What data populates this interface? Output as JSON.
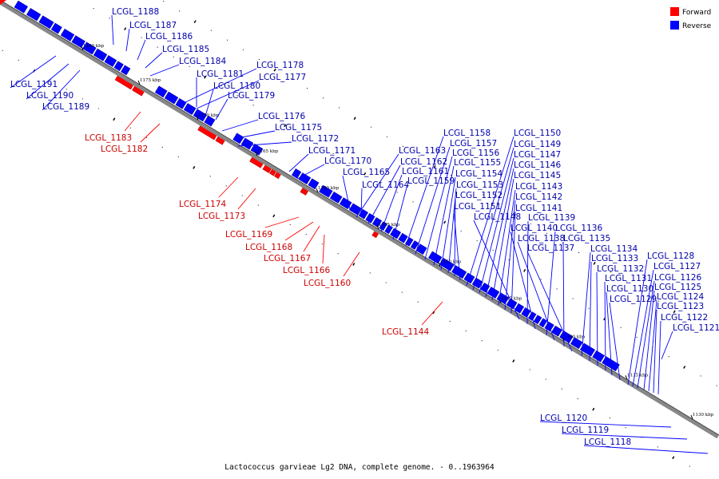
{
  "caption": "Lactococcus garvieae Lg2 DNA, complete genome. - 0..1963964",
  "legend": [
    {
      "label": "Forward",
      "color": "#ff0000"
    },
    {
      "label": "Reverse",
      "color": "#0000ff"
    }
  ],
  "colors": {
    "forward": "#ff0000",
    "reverse": "#0000ff",
    "forward_label": "#cc0000",
    "reverse_label": "#0000aa",
    "backbone": "#888888"
  },
  "kbp_ticks": [
    "1180 kbp",
    "1175 kbp",
    "1170 kbp",
    "1165 kbp",
    "1160 kbp",
    "1155 kbp",
    "1150 kbp",
    "1145 kbp",
    "1140 kbp",
    "1135 kbp",
    "1130 kbp"
  ],
  "genes": {
    "reverse": [
      "LCGL_1188",
      "LCGL_1187",
      "LCGL_1186",
      "LCGL_1185",
      "LCGL_1184",
      "LCGL_1191",
      "LCGL_1190",
      "LCGL_1189",
      "LCGL_1178",
      "LCGL_1177",
      "LCGL_1181",
      "LCGL_1180",
      "LCGL_1179",
      "LCGL_1176",
      "LCGL_1175",
      "LCGL_1172",
      "LCGL_1171",
      "LCGL_1170",
      "LCGL_1165",
      "LCGL_1164",
      "LCGL_1163",
      "LCGL_1162",
      "LCGL_1161",
      "LCGL_1159",
      "LCGL_1158",
      "LCGL_1157",
      "LCGL_1156",
      "LCGL_1155",
      "LCGL_1154",
      "LCGL_1153",
      "LCGL_1152",
      "LCGL_1151",
      "LCGL_1150",
      "LCGL_1149",
      "LCGL_1147",
      "LCGL_1146",
      "LCGL_1145",
      "LCGL_1143",
      "LCGL_1142",
      "LCGL_1141",
      "LCGL_1148",
      "LCGL_1139",
      "LCGL_1140",
      "LCGL_1136",
      "LCGL_1138",
      "LCGL_1135",
      "LCGL_1137",
      "LCGL_1134",
      "LCGL_1133",
      "LCGL_1132",
      "LCGL_1131",
      "LCGL_1130",
      "LCGL_1129",
      "LCGL_1128",
      "LCGL_1127",
      "LCGL_1126",
      "LCGL_1125",
      "LCGL_1124",
      "LCGL_1123",
      "LCGL_1122",
      "LCGL_1121",
      "LCGL_1120",
      "LCGL_1119",
      "LCGL_1118"
    ],
    "forward": [
      "LCGL_1183",
      "LCGL_1182",
      "LCGL_1174",
      "LCGL_1173",
      "LCGL_1169",
      "LCGL_1168",
      "LCGL_1167",
      "LCGL_1166",
      "LCGL_1160",
      "LCGL_1144"
    ]
  }
}
